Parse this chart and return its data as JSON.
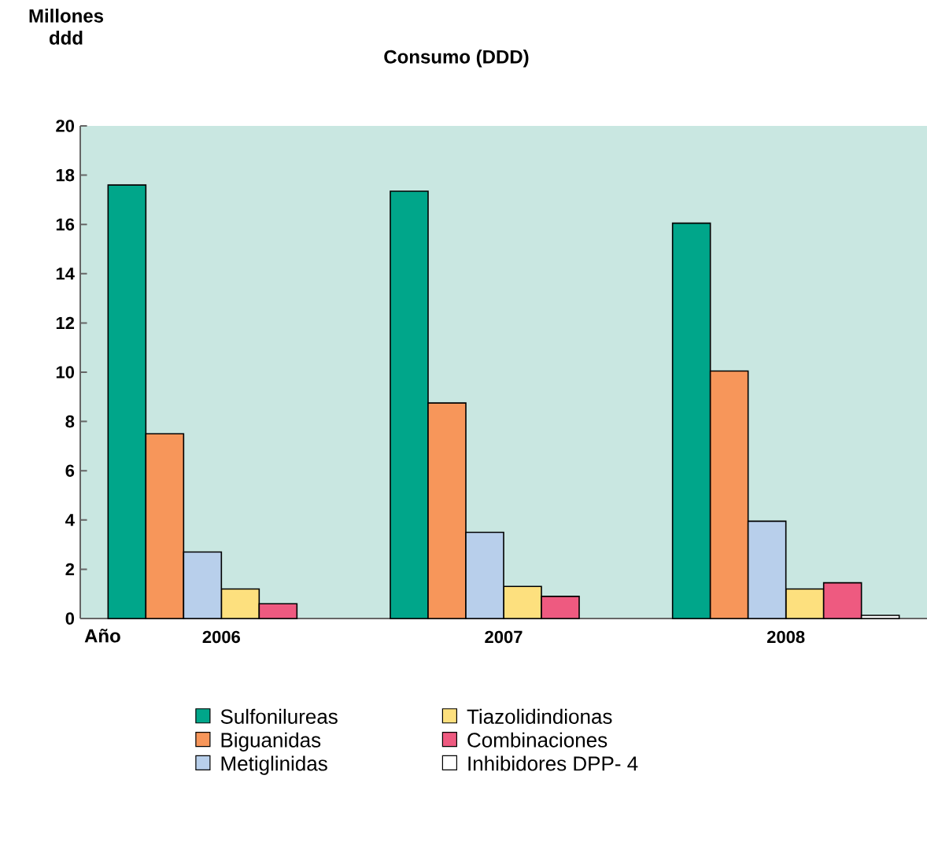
{
  "chart_data": {
    "type": "bar",
    "title": "Consumo (DDD)",
    "ylabel": "Millones ddd",
    "xlabel": "Año",
    "categories": [
      "2006",
      "2007",
      "2008"
    ],
    "series": [
      {
        "name": "Sulfonilureas",
        "color": "#00a68a",
        "values": [
          17.6,
          17.35,
          16.05
        ]
      },
      {
        "name": "Biguanidas",
        "color": "#f7965a",
        "values": [
          7.5,
          8.75,
          10.05
        ]
      },
      {
        "name": "Metiglinidas",
        "color": "#b8cfeb",
        "values": [
          2.7,
          3.5,
          3.95
        ]
      },
      {
        "name": "Tiazolidindionas",
        "color": "#fde07e",
        "values": [
          1.2,
          1.3,
          1.2
        ]
      },
      {
        "name": "Combinaciones",
        "color": "#ee5a80",
        "values": [
          0.6,
          0.9,
          1.45
        ]
      },
      {
        "name": "Inhibidores DPP- 4",
        "color": "#ffffff",
        "values": [
          null,
          null,
          0.13
        ]
      }
    ],
    "ylim": [
      0,
      20
    ],
    "yticks": [
      0,
      2,
      4,
      6,
      8,
      10,
      12,
      14,
      16,
      18,
      20
    ],
    "grid": false,
    "legend": "bottom"
  }
}
